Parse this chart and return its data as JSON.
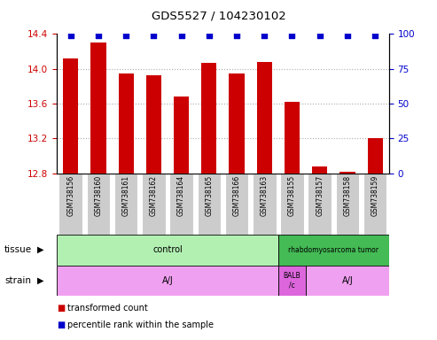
{
  "title": "GDS5527 / 104230102",
  "samples": [
    "GSM738156",
    "GSM738160",
    "GSM738161",
    "GSM738162",
    "GSM738164",
    "GSM738165",
    "GSM738166",
    "GSM738163",
    "GSM738155",
    "GSM738157",
    "GSM738158",
    "GSM738159"
  ],
  "transformed_counts": [
    14.12,
    14.3,
    13.95,
    13.93,
    13.68,
    14.07,
    13.95,
    14.08,
    13.62,
    12.88,
    12.82,
    13.2
  ],
  "percentile_ranks": [
    99,
    99,
    99,
    99,
    99,
    99,
    99,
    99,
    99,
    99,
    99,
    99
  ],
  "bar_color": "#cc0000",
  "dot_color": "#0000cc",
  "ylim_left": [
    12.8,
    14.4
  ],
  "ylim_right": [
    0,
    100
  ],
  "yticks_left": [
    12.8,
    13.2,
    13.6,
    14.0,
    14.4
  ],
  "yticks_right": [
    0,
    25,
    50,
    75,
    100
  ],
  "left_tick_color": "#cc0000",
  "right_tick_color": "#0000cc",
  "tissue_labels": [
    {
      "text": "control",
      "start": 0,
      "end": 8,
      "facecolor": "#b2f0b2"
    },
    {
      "text": "rhabdomyosarcoma tumor",
      "start": 8,
      "end": 12,
      "facecolor": "#44bb55"
    }
  ],
  "strain_labels": [
    {
      "text": "A/J",
      "start": 0,
      "end": 8,
      "facecolor": "#f0a0f0"
    },
    {
      "text": "BALB\n/c",
      "start": 8,
      "end": 9,
      "facecolor": "#dd66dd"
    },
    {
      "text": "A/J",
      "start": 9,
      "end": 12,
      "facecolor": "#f0a0f0"
    }
  ],
  "legend_items": [
    {
      "label": "transformed count",
      "color": "#cc0000"
    },
    {
      "label": "percentile rank within the sample",
      "color": "#0000cc"
    }
  ],
  "background_color": "#ffffff",
  "grid_linestyle": ":",
  "grid_color": "#aaaaaa",
  "sample_box_color": "#cccccc",
  "bar_width": 0.55
}
